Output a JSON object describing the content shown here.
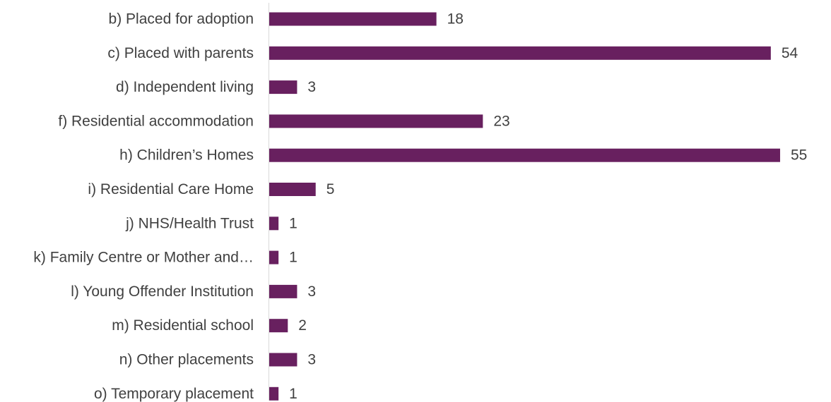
{
  "chart_data": {
    "type": "bar",
    "orientation": "horizontal",
    "categories": [
      "b) Placed for adoption",
      "c) Placed with parents",
      "d) Independent living",
      "f) Residential accommodation",
      "h) Children’s Homes",
      "i) Residential Care Home",
      "j) NHS/Health Trust",
      "k) Family Centre or Mother and…",
      "l) Young Offender Institution",
      "m) Residential school",
      "n) Other placements",
      "o) Temporary placement"
    ],
    "values": [
      18,
      54,
      3,
      23,
      55,
      5,
      1,
      1,
      3,
      2,
      3,
      1
    ],
    "title": "",
    "xlabel": "",
    "ylabel": "",
    "xlim": [
      0,
      55
    ],
    "grid": false,
    "legend": "none",
    "data_labels": true,
    "bar_color": "#68205f",
    "axis_color": "#d9d9d9",
    "text_color": "#404040"
  }
}
